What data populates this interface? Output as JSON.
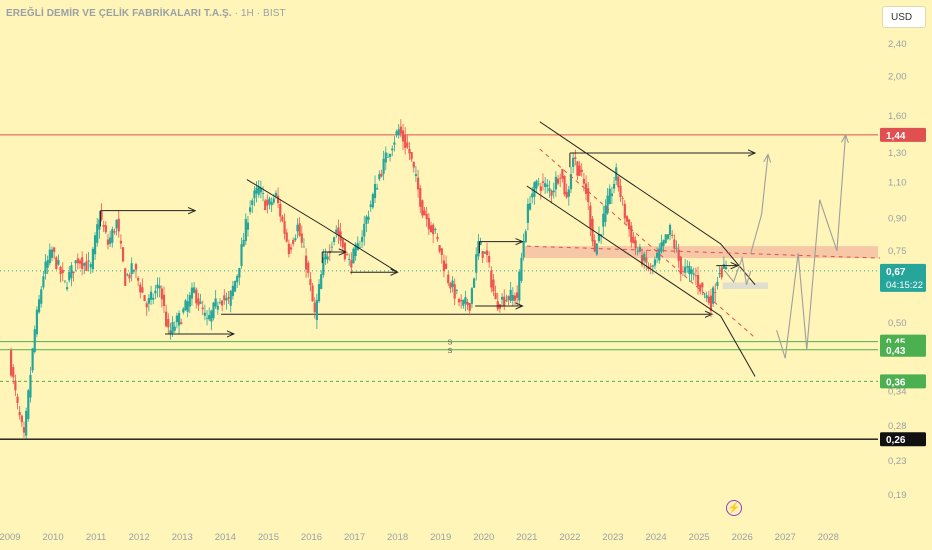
{
  "header": {
    "title": "EREĞLİ DEMİR VE ÇELİK FABRİKALARI T.A.Ş.",
    "interval": " · 1H · BIST"
  },
  "currency_button": "USD",
  "countdown": "04:15:22",
  "colors": {
    "background": "#fff5b8",
    "up": "#26a69a",
    "down": "#ef5350",
    "resistance": "#e05050",
    "support": "#4caf50",
    "projection": "#9e9e9e",
    "zone": "#f4b8a0"
  },
  "chart_data": {
    "type": "candlestick",
    "title": "EREĞLİ DEMİR VE ÇELİK FABRİKALARI T.A.Ş.",
    "interval": "1H",
    "exchange": "BIST",
    "currency": "USD",
    "y_scale": "log",
    "ylim": [
      0.16,
      2.9
    ],
    "xlim": [
      2009.0,
      2029.2
    ],
    "y_ticks": [
      "2,40",
      "2,00",
      "1,60",
      "1,30",
      "1,10",
      "0,90",
      "0,75",
      "0,50",
      "0,34",
      "0,28",
      "0,23",
      "0,19"
    ],
    "y_tick_values": [
      2.4,
      2.0,
      1.6,
      1.3,
      1.1,
      0.9,
      0.75,
      0.5,
      0.34,
      0.28,
      0.23,
      0.19
    ],
    "x_ticks": [
      "2009",
      "2010",
      "2011",
      "2012",
      "2013",
      "2014",
      "2015",
      "2016",
      "2017",
      "2018",
      "2019",
      "2020",
      "2021",
      "2022",
      "2023",
      "2024",
      "2025",
      "2026",
      "2027",
      "2028"
    ],
    "price_path": [
      [
        2009.0,
        0.42
      ],
      [
        2009.2,
        0.31
      ],
      [
        2009.35,
        0.26
      ],
      [
        2009.6,
        0.48
      ],
      [
        2009.8,
        0.66
      ],
      [
        2010.0,
        0.75
      ],
      [
        2010.3,
        0.62
      ],
      [
        2010.6,
        0.72
      ],
      [
        2010.9,
        0.68
      ],
      [
        2011.1,
        0.92
      ],
      [
        2011.3,
        0.78
      ],
      [
        2011.5,
        0.88
      ],
      [
        2011.7,
        0.64
      ],
      [
        2011.9,
        0.68
      ],
      [
        2012.2,
        0.55
      ],
      [
        2012.5,
        0.62
      ],
      [
        2012.7,
        0.47
      ],
      [
        2013.0,
        0.52
      ],
      [
        2013.3,
        0.6
      ],
      [
        2013.6,
        0.5
      ],
      [
        2013.9,
        0.58
      ],
      [
        2014.1,
        0.56
      ],
      [
        2014.3,
        0.66
      ],
      [
        2014.6,
        0.98
      ],
      [
        2014.8,
        1.06
      ],
      [
        2015.0,
        0.96
      ],
      [
        2015.2,
        1.02
      ],
      [
        2015.5,
        0.76
      ],
      [
        2015.7,
        0.86
      ],
      [
        2015.9,
        0.7
      ],
      [
        2016.1,
        0.52
      ],
      [
        2016.3,
        0.7
      ],
      [
        2016.6,
        0.85
      ],
      [
        2016.9,
        0.7
      ],
      [
        2017.1,
        0.76
      ],
      [
        2017.3,
        0.9
      ],
      [
        2017.6,
        1.15
      ],
      [
        2017.9,
        1.38
      ],
      [
        2018.05,
        1.48
      ],
      [
        2018.3,
        1.3
      ],
      [
        2018.6,
        0.95
      ],
      [
        2018.9,
        0.82
      ],
      [
        2019.2,
        0.64
      ],
      [
        2019.5,
        0.55
      ],
      [
        2019.7,
        0.56
      ],
      [
        2019.9,
        0.78
      ],
      [
        2020.1,
        0.72
      ],
      [
        2020.3,
        0.56
      ],
      [
        2020.6,
        0.58
      ],
      [
        2020.8,
        0.58
      ],
      [
        2020.95,
        0.8
      ],
      [
        2021.1,
        1.02
      ],
      [
        2021.3,
        1.1
      ],
      [
        2021.6,
        1.05
      ],
      [
        2021.8,
        1.18
      ],
      [
        2021.95,
        1.0
      ],
      [
        2022.1,
        1.28
      ],
      [
        2022.4,
        1.05
      ],
      [
        2022.6,
        0.75
      ],
      [
        2022.9,
        0.98
      ],
      [
        2023.1,
        1.15
      ],
      [
        2023.3,
        0.92
      ],
      [
        2023.5,
        0.78
      ],
      [
        2023.7,
        0.72
      ],
      [
        2023.9,
        0.67
      ],
      [
        2024.1,
        0.74
      ],
      [
        2024.35,
        0.84
      ],
      [
        2024.6,
        0.68
      ],
      [
        2024.9,
        0.66
      ],
      [
        2025.1,
        0.6
      ],
      [
        2025.3,
        0.56
      ],
      [
        2025.5,
        0.68
      ],
      [
        2025.6,
        0.67
      ]
    ],
    "last_price": 0.67,
    "horizontal_levels": [
      {
        "label": "1,44",
        "value": 1.44,
        "style": "solid",
        "color": "#e05050"
      },
      {
        "label": "0,67",
        "value": 0.67,
        "style": "dotted",
        "color": "#26a69a"
      },
      {
        "label": "0,45",
        "value": 0.45,
        "style": "solid",
        "color": "#4caf50"
      },
      {
        "label": "0,43",
        "value": 0.43,
        "style": "solid",
        "color": "#4caf50"
      },
      {
        "label": "0,36",
        "value": 0.36,
        "style": "dashed",
        "color": "#4caf50"
      },
      {
        "label": "0,26",
        "value": 0.26,
        "style": "solid",
        "color": "#111111"
      }
    ],
    "zones": [
      {
        "from_x": 2020.9,
        "to_x": 2029.2,
        "low": 0.72,
        "high": 0.77,
        "color": "#f4b8a0"
      },
      {
        "from_x": 2025.55,
        "to_x": 2026.6,
        "low": 0.605,
        "high": 0.628,
        "color": "#d5d5d5"
      }
    ],
    "support_marks": [
      "S",
      "S"
    ],
    "trendlines": [
      {
        "points": [
          [
            2014.5,
            1.12
          ],
          [
            2016.3,
            0.86
          ],
          [
            2018.0,
            0.665
          ]
        ],
        "color": "#222222"
      },
      {
        "points": [
          [
            2021.3,
            1.55
          ],
          [
            2025.5,
            0.78
          ],
          [
            2026.3,
            0.62
          ]
        ],
        "color": "#222222"
      },
      {
        "points": [
          [
            2021.0,
            1.08
          ],
          [
            2025.5,
            0.52
          ],
          [
            2026.3,
            0.37
          ]
        ],
        "color": "#222222"
      },
      {
        "points": [
          [
            2021.3,
            1.33
          ],
          [
            2026.3,
            0.46
          ]
        ],
        "color": "#e05050",
        "dash": true
      },
      {
        "points": [
          [
            2021.0,
            0.77
          ],
          [
            2029.2,
            0.72
          ]
        ],
        "color": "#e05050",
        "dash": true
      }
    ],
    "arrows": [
      {
        "from": [
          2011.1,
          0.94
        ],
        "to": [
          2013.3,
          0.94
        ]
      },
      {
        "from": [
          2012.6,
          0.47
        ],
        "to": [
          2014.2,
          0.47
        ]
      },
      {
        "from": [
          2016.25,
          0.745
        ],
        "to": [
          2016.8,
          0.745
        ]
      },
      {
        "from": [
          2016.9,
          0.665
        ],
        "to": [
          2018.0,
          0.665
        ]
      },
      {
        "from": [
          2019.9,
          0.79
        ],
        "to": [
          2020.9,
          0.79
        ]
      },
      {
        "from": [
          2019.8,
          0.55
        ],
        "to": [
          2020.9,
          0.55
        ]
      },
      {
        "from": [
          2022.0,
          1.3
        ],
        "to": [
          2026.3,
          1.3
        ]
      },
      {
        "from": [
          2025.4,
          0.69
        ],
        "to": [
          2025.9,
          0.69
        ]
      }
    ],
    "bracket_lines": [
      {
        "from": [
          2013.9,
          0.525
        ],
        "to": [
          2025.3,
          0.525
        ]
      }
    ],
    "projections": [
      {
        "points": [
          [
            2025.6,
            0.67
          ],
          [
            2025.8,
            0.63
          ],
          [
            2026.0,
            0.72
          ],
          [
            2026.1,
            0.62
          ],
          [
            2026.2,
            0.67
          ]
        ],
        "color": "#9e9e9e"
      },
      {
        "points": [
          [
            2026.2,
            0.74
          ],
          [
            2026.45,
            0.92
          ],
          [
            2026.6,
            1.29
          ]
        ],
        "color": "#9e9e9e",
        "arrow": true
      },
      {
        "points": [
          [
            2026.8,
            0.48
          ],
          [
            2027.0,
            0.41
          ],
          [
            2027.3,
            0.74
          ],
          [
            2027.5,
            0.43
          ],
          [
            2027.8,
            1.0
          ],
          [
            2028.2,
            0.75
          ],
          [
            2028.4,
            1.44
          ]
        ],
        "color": "#9e9e9e",
        "arrow": true
      }
    ]
  }
}
